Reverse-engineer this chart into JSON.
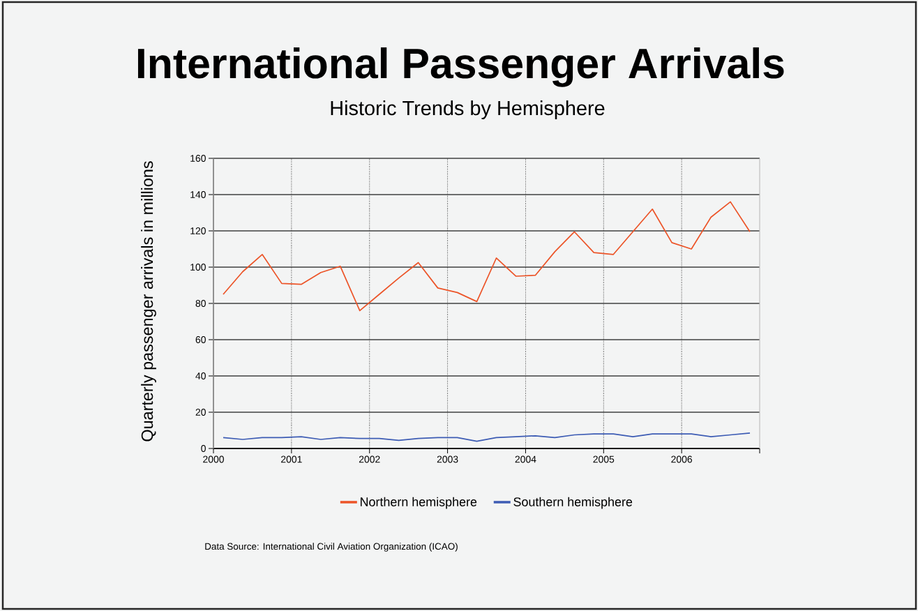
{
  "chart_data": {
    "type": "line",
    "title": "International Passenger Arrivals",
    "subtitle": "Historic Trends by Hemisphere",
    "ylabel": "Quarterly passenger arrivals in millions",
    "annotations": [
      "Data Source: International Civil Aviation Organization (ICAO)"
    ],
    "x": [
      2000.125,
      2000.375,
      2000.625,
      2000.875,
      2001.125,
      2001.375,
      2001.625,
      2001.875,
      2002.125,
      2002.375,
      2002.625,
      2002.875,
      2003.125,
      2003.375,
      2003.625,
      2003.875,
      2004.125,
      2004.375,
      2004.625,
      2004.875,
      2005.125,
      2005.375,
      2005.625,
      2005.875,
      2006.125,
      2006.375,
      2006.625,
      2006.875
    ],
    "series": [
      {
        "name": "Northern hemisphere",
        "color": "#ec5428",
        "values": [
          85,
          97.5,
          107,
          91,
          90.5,
          97,
          100.5,
          76,
          85,
          94,
          102.5,
          88.5,
          86,
          81,
          105,
          95,
          95.5,
          108.5,
          119.5,
          108,
          107,
          119.5,
          132,
          113.5,
          110,
          127.5,
          136,
          119.5
        ]
      },
      {
        "name": "Southern hemisphere",
        "color": "#3d5cb4",
        "values": [
          6,
          5,
          6,
          6,
          6.5,
          5,
          6,
          5.5,
          5.5,
          4.5,
          5.5,
          6,
          6,
          4,
          6,
          6.5,
          7,
          6,
          7.5,
          8,
          8,
          6.5,
          8,
          8,
          8,
          6.5,
          7.5,
          8.5
        ]
      }
    ],
    "xlim": [
      2000,
      2007
    ],
    "xticks": [
      2000,
      2001,
      2002,
      2003,
      2004,
      2005,
      2006,
      {
        "value": 2007,
        "label": null
      }
    ],
    "ylim": [
      0,
      160
    ],
    "yticks": [
      0,
      20,
      40,
      60,
      80,
      100,
      120,
      140,
      160
    ],
    "grid": true,
    "legend": "bottom",
    "marker": "none",
    "line_style": "solid"
  }
}
